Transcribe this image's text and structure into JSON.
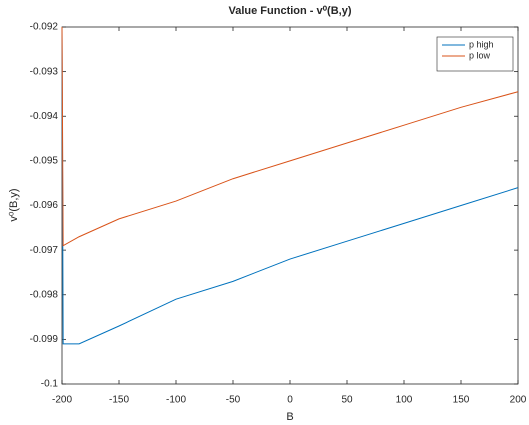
{
  "chart_data": {
    "type": "line",
    "title": "Value Function - v⁰(B,y)",
    "xlabel": "B",
    "ylabel": "v⁰(B,y)",
    "x": [
      -200,
      -199,
      -185,
      -150,
      -100,
      -50,
      0,
      50,
      100,
      150,
      200
    ],
    "series": [
      {
        "name": "p high",
        "color": "#0072bd",
        "values": [
          -0.092,
          -0.0991,
          -0.0991,
          -0.0987,
          -0.0981,
          -0.0977,
          -0.0972,
          -0.0968,
          -0.0964,
          -0.096,
          -0.0956
        ]
      },
      {
        "name": "p low",
        "color": "#d95319",
        "values": [
          -0.092,
          -0.0969,
          -0.0967,
          -0.0963,
          -0.0959,
          -0.0954,
          -0.095,
          -0.0946,
          -0.0942,
          -0.0938,
          -0.09345
        ]
      }
    ],
    "xlim": [
      -200,
      200
    ],
    "xticks": [
      -200,
      -150,
      -100,
      -50,
      0,
      50,
      100,
      150,
      200
    ],
    "ylim": [
      -0.1,
      -0.092
    ],
    "yticks": [
      -0.1,
      -0.099,
      -0.098,
      -0.097,
      -0.096,
      -0.095,
      -0.094,
      -0.093,
      -0.092
    ],
    "grid": false,
    "legend": "top-right"
  }
}
